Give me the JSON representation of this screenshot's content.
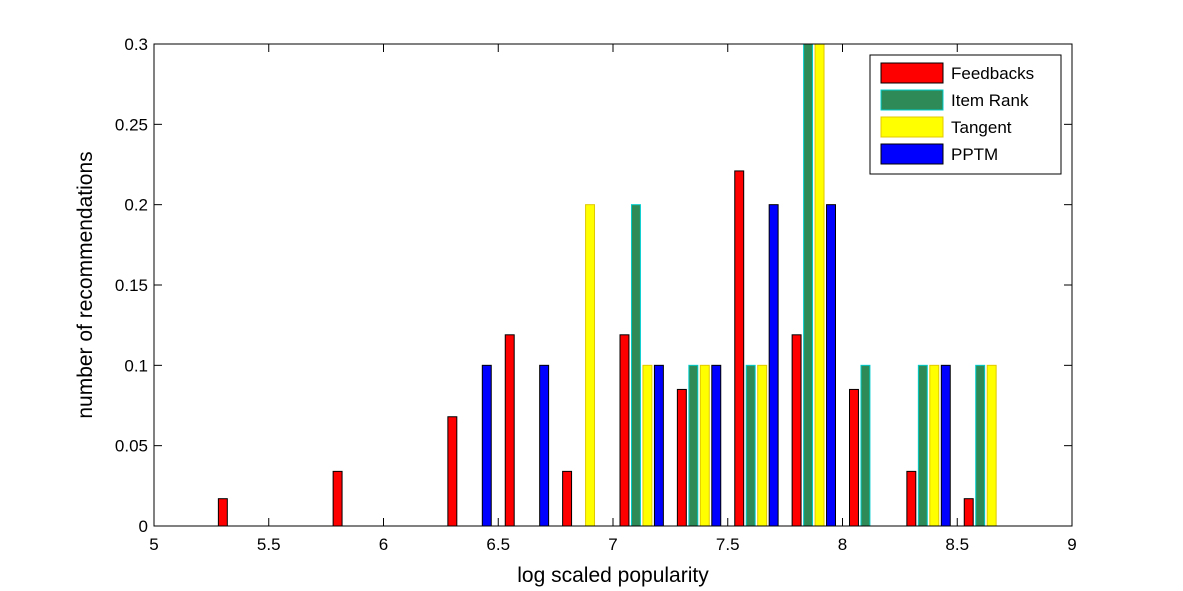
{
  "chart_data": {
    "type": "bar",
    "xlabel": "log scaled popularity",
    "ylabel": "number of recommendations",
    "xlim": [
      5,
      9
    ],
    "ylim": [
      0,
      0.3
    ],
    "xticks": [
      "5",
      "5.5",
      "6",
      "6.5",
      "7",
      "7.5",
      "8",
      "8.5",
      "9"
    ],
    "yticks": [
      "0",
      "0.05",
      "0.1",
      "0.15",
      "0.2",
      "0.25",
      "0.3"
    ],
    "bin_centers": [
      5.125,
      5.375,
      5.625,
      5.875,
      6.125,
      6.375,
      6.625,
      6.875,
      7.125,
      7.375,
      7.625,
      7.875,
      8.125,
      8.375,
      8.625,
      8.875
    ],
    "legend_position": "top-right",
    "series": [
      {
        "name": "Feedbacks",
        "color": "#ff0000",
        "edge": "#000000",
        "values": [
          0,
          0.017,
          0,
          0.034,
          0,
          0.068,
          0.119,
          0.034,
          0.119,
          0.085,
          0.221,
          0.119,
          0.085,
          0.034,
          0.017,
          0
        ]
      },
      {
        "name": "Item Rank",
        "color": "#2e8b57",
        "edge": "#00cccc",
        "values": [
          0,
          0,
          0,
          0,
          0,
          0,
          0,
          0,
          0.2,
          0.1,
          0.1,
          0.3,
          0.1,
          0.1,
          0.1,
          0
        ]
      },
      {
        "name": "Tangent",
        "color": "#ffff00",
        "edge": "#e0c800",
        "values": [
          0,
          0,
          0,
          0,
          0,
          0,
          0,
          0.2,
          0.1,
          0.1,
          0.1,
          0.3,
          0,
          0.1,
          0.1,
          0
        ]
      },
      {
        "name": "PPTM",
        "color": "#0000ff",
        "edge": "#000000",
        "values": [
          0,
          0,
          0,
          0,
          0,
          0.1,
          0.1,
          0,
          0.1,
          0.1,
          0.2,
          0.2,
          0,
          0.1,
          0,
          0
        ]
      }
    ]
  }
}
